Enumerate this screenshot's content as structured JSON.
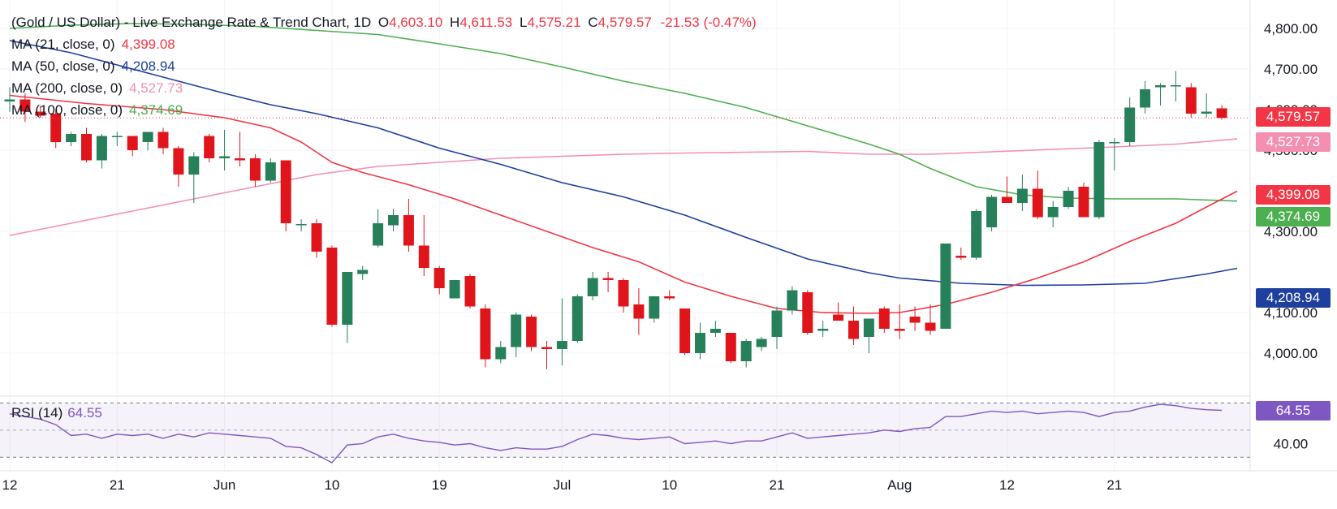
{
  "header": {
    "symbol": "(Gold / US Dollar) - Live Exchange Rate & Trend Chart, 1D",
    "open_label": "O",
    "open": "4,603.10",
    "high_label": "H",
    "high": "4,611.53",
    "low_label": "L",
    "low": "4,575.21",
    "close_label": "C",
    "close": "4,579.57",
    "change": "-21.53 (-0.47%)"
  },
  "indicators": [
    {
      "label": "MA (21, close, 0)",
      "value": "4,399.08",
      "color": "#f23645"
    },
    {
      "label": "MA (50, close, 0)",
      "value": "4,208.94",
      "color": "#1e3f9e"
    },
    {
      "label": "MA (200, close, 0)",
      "value": "4,527.73",
      "color": "#f48fb1"
    },
    {
      "label": "MA (100, close, 0)",
      "value": "4,374.69",
      "color": "#4caf50"
    }
  ],
  "price_tags": {
    "last": "4,579.57",
    "ma200": "4,527.73",
    "ma21": "4,399.08",
    "ma100": "4,374.69",
    "ma50": "4,208.94"
  },
  "rsi": {
    "label": "RSI (14)",
    "value": "64.55",
    "color": "#7e57c2",
    "upper": 70,
    "lower": 30,
    "tick_label": "40.00"
  },
  "colors": {
    "up": "#26805a",
    "down": "#e0151c",
    "grid": "#f0f3fa"
  },
  "chart_data": {
    "type": "candlestick",
    "y_ticks": [
      "4,800.00",
      "4,700.00",
      "4,600.00",
      "4,500.00",
      "4,300.00",
      "4,100.00",
      "4,000.00"
    ],
    "y_tick_values": [
      4800,
      4700,
      4600,
      4500,
      4300,
      4100,
      4000
    ],
    "ylim": [
      3930,
      4830
    ],
    "x_ticks": [
      {
        "label": "12",
        "index": 0
      },
      {
        "label": "21",
        "index": 7
      },
      {
        "label": "Jun",
        "index": 14
      },
      {
        "label": "10",
        "index": 21
      },
      {
        "label": "19",
        "index": 28
      },
      {
        "label": "Jul",
        "index": 36
      },
      {
        "label": "10",
        "index": 43
      },
      {
        "label": "21",
        "index": 50
      },
      {
        "label": "Aug",
        "index": 58
      },
      {
        "label": "12",
        "index": 65
      },
      {
        "label": "21",
        "index": 72
      }
    ],
    "candles": [
      [
        4620,
        4655,
        4595,
        4625
      ],
      [
        4625,
        4640,
        4570,
        4595
      ],
      [
        4595,
        4610,
        4580,
        4585
      ],
      [
        4590,
        4600,
        4505,
        4520
      ],
      [
        4520,
        4545,
        4510,
        4540
      ],
      [
        4540,
        4555,
        4470,
        4475
      ],
      [
        4475,
        4540,
        4455,
        4535
      ],
      [
        4535,
        4545,
        4510,
        4535
      ],
      [
        4535,
        4535,
        4485,
        4500
      ],
      [
        4520,
        4545,
        4500,
        4545
      ],
      [
        4545,
        4555,
        4490,
        4505
      ],
      [
        4505,
        4510,
        4410,
        4440
      ],
      [
        4440,
        4495,
        4370,
        4485
      ],
      [
        4535,
        4540,
        4470,
        4480
      ],
      [
        4480,
        4550,
        4450,
        4485
      ],
      [
        4480,
        4545,
        4460,
        4475
      ],
      [
        4480,
        4490,
        4410,
        4425
      ],
      [
        4425,
        4480,
        4420,
        4470
      ],
      [
        4475,
        4475,
        4300,
        4320
      ],
      [
        4318,
        4330,
        4300,
        4318
      ],
      [
        4320,
        4330,
        4235,
        4250
      ],
      [
        4260,
        4265,
        4065,
        4070
      ],
      [
        4070,
        4200,
        4025,
        4200
      ],
      [
        4195,
        4215,
        4180,
        4205
      ],
      [
        4265,
        4355,
        4260,
        4320
      ],
      [
        4315,
        4355,
        4300,
        4340
      ],
      [
        4340,
        4380,
        4250,
        4265
      ],
      [
        4265,
        4340,
        4190,
        4210
      ],
      [
        4210,
        4215,
        4145,
        4160
      ],
      [
        4135,
        4180,
        4135,
        4180
      ],
      [
        4190,
        4195,
        4110,
        4115
      ],
      [
        4110,
        4120,
        3965,
        3985
      ],
      [
        3985,
        4030,
        3975,
        4015
      ],
      [
        4015,
        4100,
        3990,
        4095
      ],
      [
        4090,
        4095,
        4005,
        4015
      ],
      [
        4015,
        4030,
        3960,
        4010
      ],
      [
        4010,
        4135,
        3970,
        4030
      ],
      [
        4030,
        4145,
        4025,
        4140
      ],
      [
        4140,
        4200,
        4130,
        4185
      ],
      [
        4185,
        4200,
        4150,
        4180
      ],
      [
        4180,
        4185,
        4100,
        4115
      ],
      [
        4120,
        4160,
        4045,
        4085
      ],
      [
        4085,
        4140,
        4075,
        4140
      ],
      [
        4140,
        4155,
        4130,
        4135
      ],
      [
        4110,
        4110,
        3995,
        4000
      ],
      [
        4000,
        4075,
        3985,
        4050
      ],
      [
        4050,
        4080,
        4040,
        4060
      ],
      [
        4050,
        4050,
        3975,
        3980
      ],
      [
        3980,
        4035,
        3965,
        4030
      ],
      [
        4015,
        4040,
        4005,
        4035
      ],
      [
        4040,
        4115,
        4010,
        4105
      ],
      [
        4105,
        4165,
        4095,
        4155
      ],
      [
        4150,
        4155,
        4045,
        4050
      ],
      [
        4055,
        4080,
        4040,
        4060
      ],
      [
        4095,
        4125,
        4080,
        4080
      ],
      [
        4080,
        4115,
        4020,
        4035
      ],
      [
        4040,
        4085,
        4000,
        4085
      ],
      [
        4110,
        4115,
        4050,
        4060
      ],
      [
        4060,
        4120,
        4035,
        4055
      ],
      [
        4090,
        4115,
        4055,
        4075
      ],
      [
        4075,
        4120,
        4045,
        4055
      ],
      [
        4060,
        4270,
        4060,
        4270
      ],
      [
        4240,
        4260,
        4230,
        4235
      ],
      [
        4235,
        4355,
        4230,
        4350
      ],
      [
        4310,
        4390,
        4300,
        4385
      ],
      [
        4385,
        4435,
        4370,
        4370
      ],
      [
        4370,
        4440,
        4350,
        4405
      ],
      [
        4405,
        4450,
        4330,
        4335
      ],
      [
        4335,
        4375,
        4310,
        4360
      ],
      [
        4360,
        4410,
        4355,
        4400
      ],
      [
        4410,
        4420,
        4335,
        4335
      ],
      [
        4335,
        4525,
        4330,
        4520
      ],
      [
        4520,
        4530,
        4450,
        4520
      ],
      [
        4520,
        4630,
        4510,
        4605
      ],
      [
        4605,
        4670,
        4590,
        4650
      ],
      [
        4655,
        4665,
        4610,
        4660
      ],
      [
        4660,
        4695,
        4620,
        4660
      ],
      [
        4655,
        4665,
        4580,
        4590
      ],
      [
        4590,
        4640,
        4580,
        4595
      ],
      [
        4603.1,
        4611.53,
        4575.21,
        4579.57
      ]
    ],
    "ma21": [
      [
        0,
        4635
      ],
      [
        5,
        4615
      ],
      [
        10,
        4600
      ],
      [
        14,
        4580
      ],
      [
        17,
        4555
      ],
      [
        19,
        4520
      ],
      [
        21,
        4470
      ],
      [
        23,
        4445
      ],
      [
        26,
        4415
      ],
      [
        29,
        4380
      ],
      [
        32,
        4340
      ],
      [
        35,
        4300
      ],
      [
        38,
        4260
      ],
      [
        41,
        4225
      ],
      [
        44,
        4175
      ],
      [
        47,
        4140
      ],
      [
        50,
        4110
      ],
      [
        53,
        4100
      ],
      [
        56,
        4098
      ],
      [
        58,
        4100
      ],
      [
        61,
        4120
      ],
      [
        64,
        4150
      ],
      [
        67,
        4185
      ],
      [
        70,
        4225
      ],
      [
        73,
        4275
      ],
      [
        76,
        4320
      ],
      [
        78,
        4360
      ],
      [
        80,
        4399.08
      ]
    ],
    "ma50": [
      [
        0,
        4770
      ],
      [
        4,
        4740
      ],
      [
        8,
        4700
      ],
      [
        11,
        4670
      ],
      [
        14,
        4640
      ],
      [
        17,
        4612
      ],
      [
        20,
        4590
      ],
      [
        24,
        4555
      ],
      [
        28,
        4505
      ],
      [
        32,
        4465
      ],
      [
        36,
        4420
      ],
      [
        40,
        4385
      ],
      [
        44,
        4340
      ],
      [
        48,
        4285
      ],
      [
        52,
        4232
      ],
      [
        56,
        4198
      ],
      [
        58,
        4185
      ],
      [
        62,
        4172
      ],
      [
        66,
        4167
      ],
      [
        70,
        4168
      ],
      [
        74,
        4172
      ],
      [
        78,
        4195
      ],
      [
        80,
        4208.94
      ]
    ],
    "ma100": [
      [
        0,
        4800
      ],
      [
        4,
        4808
      ],
      [
        8,
        4812
      ],
      [
        12,
        4810
      ],
      [
        16,
        4805
      ],
      [
        20,
        4795
      ],
      [
        24,
        4785
      ],
      [
        28,
        4762
      ],
      [
        32,
        4738
      ],
      [
        36,
        4705
      ],
      [
        40,
        4670
      ],
      [
        44,
        4640
      ],
      [
        48,
        4605
      ],
      [
        52,
        4560
      ],
      [
        56,
        4515
      ],
      [
        58,
        4490
      ],
      [
        60,
        4455
      ],
      [
        63,
        4410
      ],
      [
        66,
        4390
      ],
      [
        69,
        4382
      ],
      [
        72,
        4380
      ],
      [
        76,
        4380
      ],
      [
        80,
        4374.69
      ]
    ],
    "ma200": [
      [
        0,
        4290
      ],
      [
        4,
        4320
      ],
      [
        8,
        4350
      ],
      [
        12,
        4380
      ],
      [
        16,
        4410
      ],
      [
        20,
        4440
      ],
      [
        24,
        4460
      ],
      [
        28,
        4470
      ],
      [
        32,
        4480
      ],
      [
        36,
        4485
      ],
      [
        40,
        4490
      ],
      [
        44,
        4493
      ],
      [
        48,
        4495
      ],
      [
        52,
        4497
      ],
      [
        56,
        4490
      ],
      [
        60,
        4490
      ],
      [
        64,
        4496
      ],
      [
        68,
        4502
      ],
      [
        72,
        4508
      ],
      [
        76,
        4515
      ],
      [
        80,
        4527.73
      ]
    ],
    "rsi_values": [
      62,
      60,
      58,
      54,
      46,
      47,
      44,
      47,
      46,
      47,
      44,
      47,
      45,
      48,
      47,
      46,
      45,
      44,
      38,
      37,
      32,
      26,
      39,
      40,
      45,
      47,
      44,
      42,
      41,
      39,
      40,
      37,
      35,
      37,
      36,
      36,
      38,
      43,
      47,
      46,
      44,
      43,
      44,
      45,
      40,
      41,
      42,
      40,
      42,
      42,
      45,
      48,
      44,
      45,
      46,
      47,
      48,
      50,
      49,
      51,
      52,
      60,
      60,
      62,
      64,
      63,
      64,
      62,
      63,
      64,
      63,
      60,
      63,
      64,
      67,
      69,
      68,
      66,
      65,
      64.55
    ],
    "rsi_ylim": [
      20,
      75
    ]
  }
}
